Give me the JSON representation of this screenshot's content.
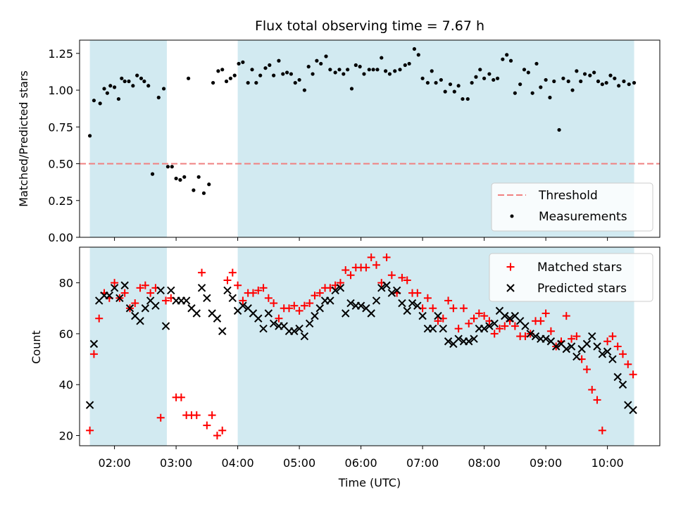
{
  "figure": {
    "title": "Flux total observing time = 7.67 h",
    "xlabel": "Time (UTC)",
    "xticks": [
      "02:00",
      "03:00",
      "04:00",
      "05:00",
      "06:00",
      "07:00",
      "08:00",
      "09:00",
      "10:00"
    ]
  },
  "colors": {
    "span": "#add8e6",
    "threshold": "#f08080",
    "measurements": "#000000",
    "matched": "#ff0000",
    "predicted": "#000000"
  },
  "chart_data": [
    {
      "type": "scatter",
      "ylabel": "Matched/Predicted stars",
      "xlim": [
        "01:26",
        "10:51"
      ],
      "ylim": [
        0,
        1.34
      ],
      "yticks": [
        "0.00",
        "0.25",
        "0.50",
        "0.75",
        "1.00",
        "1.25"
      ],
      "legend": {
        "placement": "lower right",
        "entries": [
          "Threshold",
          "Measurements"
        ]
      },
      "shaded_spans": [
        [
          "01:36",
          "02:51"
        ],
        [
          "04:00",
          "10:26"
        ]
      ],
      "threshold": 0.5,
      "series": [
        {
          "name": "Measurements",
          "x": [
            "01:36",
            "01:40",
            "01:46",
            "01:50",
            "01:53",
            "01:56",
            "02:00",
            "02:04",
            "02:07",
            "02:10",
            "02:14",
            "02:18",
            "02:22",
            "02:26",
            "02:29",
            "02:33",
            "02:37",
            "02:43",
            "02:48",
            "02:52",
            "02:56",
            "03:00",
            "03:04",
            "03:08",
            "03:12",
            "03:17",
            "03:22",
            "03:27",
            "03:32",
            "03:36",
            "03:41",
            "03:45",
            "03:49",
            "03:53",
            "03:57",
            "04:01",
            "04:05",
            "04:10",
            "04:14",
            "04:18",
            "04:22",
            "04:27",
            "04:31",
            "04:35",
            "04:40",
            "04:44",
            "04:48",
            "04:52",
            "04:56",
            "05:00",
            "05:05",
            "05:09",
            "05:13",
            "05:17",
            "05:21",
            "05:26",
            "05:30",
            "05:35",
            "05:39",
            "05:43",
            "05:47",
            "05:51",
            "05:55",
            "05:59",
            "06:03",
            "06:08",
            "06:12",
            "06:16",
            "06:20",
            "06:24",
            "06:28",
            "06:33",
            "06:38",
            "06:43",
            "06:47",
            "06:52",
            "06:56",
            "07:00",
            "07:05",
            "07:09",
            "07:13",
            "07:18",
            "07:22",
            "07:27",
            "07:31",
            "07:35",
            "07:39",
            "07:44",
            "07:48",
            "07:52",
            "07:56",
            "08:00",
            "08:05",
            "08:09",
            "08:13",
            "08:18",
            "08:22",
            "08:26",
            "08:30",
            "08:35",
            "08:39",
            "08:43",
            "08:47",
            "08:51",
            "08:55",
            "09:00",
            "09:04",
            "09:08",
            "09:13",
            "09:17",
            "09:22",
            "09:26",
            "09:30",
            "09:34",
            "09:38",
            "09:43",
            "09:47",
            "09:51",
            "09:55",
            "09:59",
            "10:03",
            "10:07",
            "10:11",
            "10:16",
            "10:21",
            "10:26"
          ],
          "y": [
            0.69,
            0.93,
            0.91,
            1.01,
            0.98,
            1.03,
            1.02,
            0.94,
            1.08,
            1.06,
            1.06,
            1.03,
            1.1,
            1.08,
            1.06,
            1.03,
            0.43,
            0.95,
            1.01,
            0.48,
            0.48,
            0.4,
            0.39,
            0.41,
            1.08,
            0.32,
            0.41,
            0.3,
            0.36,
            1.05,
            1.13,
            1.14,
            1.06,
            1.08,
            1.1,
            1.18,
            1.19,
            1.05,
            1.14,
            1.05,
            1.1,
            1.15,
            1.17,
            1.1,
            1.2,
            1.11,
            1.12,
            1.11,
            1.05,
            1.07,
            1.0,
            1.16,
            1.11,
            1.2,
            1.18,
            1.23,
            1.14,
            1.12,
            1.14,
            1.11,
            1.14,
            1.01,
            1.17,
            1.16,
            1.11,
            1.14,
            1.14,
            1.14,
            1.22,
            1.13,
            1.11,
            1.13,
            1.14,
            1.17,
            1.18,
            1.28,
            1.24,
            1.08,
            1.05,
            1.13,
            1.05,
            1.07,
            0.99,
            1.04,
            0.99,
            1.03,
            0.94,
            0.94,
            1.05,
            1.09,
            1.14,
            1.08,
            1.11,
            1.07,
            1.08,
            1.21,
            1.24,
            1.2,
            0.98,
            1.04,
            1.14,
            1.12,
            0.98,
            1.18,
            1.02,
            1.07,
            0.95,
            1.06,
            0.73,
            1.08,
            1.06,
            1.0,
            1.13,
            1.06,
            1.11,
            1.1,
            1.12,
            1.06,
            1.04,
            1.05,
            1.1,
            1.08,
            1.03,
            1.06,
            1.04,
            1.05
          ]
        }
      ]
    },
    {
      "type": "scatter",
      "ylabel": "Count",
      "xlim": [
        "01:26",
        "10:51"
      ],
      "ylim": [
        16,
        94
      ],
      "yticks": [
        "20",
        "40",
        "60",
        "80"
      ],
      "legend": {
        "placement": "upper right",
        "entries": [
          "Matched stars",
          "Predicted stars"
        ]
      },
      "shaded_spans": [
        [
          "01:36",
          "02:51"
        ],
        [
          "04:00",
          "10:26"
        ]
      ],
      "series": [
        {
          "name": "Matched stars",
          "x": [
            "01:36",
            "01:40",
            "01:45",
            "01:50",
            "01:55",
            "02:00",
            "02:05",
            "02:10",
            "02:15",
            "02:20",
            "02:25",
            "02:30",
            "02:35",
            "02:40",
            "02:45",
            "02:50",
            "02:55",
            "03:00",
            "03:05",
            "03:10",
            "03:15",
            "03:20",
            "03:25",
            "03:30",
            "03:35",
            "03:40",
            "03:45",
            "03:50",
            "03:55",
            "04:00",
            "04:05",
            "04:10",
            "04:15",
            "04:20",
            "04:25",
            "04:30",
            "04:35",
            "04:40",
            "04:45",
            "04:50",
            "04:55",
            "05:00",
            "05:05",
            "05:10",
            "05:15",
            "05:20",
            "05:25",
            "05:30",
            "05:35",
            "05:40",
            "05:45",
            "05:50",
            "05:55",
            "06:00",
            "06:05",
            "06:10",
            "06:15",
            "06:20",
            "06:25",
            "06:30",
            "06:35",
            "06:40",
            "06:45",
            "06:50",
            "06:55",
            "07:00",
            "07:05",
            "07:10",
            "07:15",
            "07:20",
            "07:25",
            "07:30",
            "07:35",
            "07:40",
            "07:45",
            "07:50",
            "07:55",
            "08:00",
            "08:05",
            "08:10",
            "08:15",
            "08:20",
            "08:25",
            "08:30",
            "08:35",
            "08:40",
            "08:45",
            "08:50",
            "08:55",
            "09:00",
            "09:05",
            "09:10",
            "09:15",
            "09:20",
            "09:25",
            "09:30",
            "09:35",
            "09:40",
            "09:45",
            "09:50",
            "09:55",
            "10:00",
            "10:05",
            "10:10",
            "10:15",
            "10:20",
            "10:25"
          ],
          "y": [
            22,
            52,
            66,
            76,
            74,
            80,
            74,
            76,
            70,
            72,
            78,
            79,
            76,
            78,
            27,
            73,
            74,
            35,
            35,
            28,
            28,
            28,
            84,
            24,
            28,
            20,
            22,
            81,
            84,
            79,
            73,
            76,
            76,
            77,
            78,
            74,
            72,
            66,
            70,
            70,
            71,
            69,
            71,
            72,
            75,
            76,
            78,
            78,
            79,
            80,
            85,
            83,
            86,
            86,
            86,
            90,
            87,
            80,
            90,
            83,
            76,
            82,
            81,
            76,
            76,
            70,
            74,
            70,
            65,
            66,
            73,
            70,
            62,
            70,
            64,
            66,
            68,
            67,
            65,
            60,
            62,
            63,
            65,
            63,
            59,
            59,
            60,
            65,
            65,
            68,
            61,
            55,
            57,
            67,
            58,
            59,
            50,
            46,
            38,
            34,
            22,
            57,
            59,
            55,
            52,
            48,
            44
          ]
        },
        {
          "name": "Predicted stars",
          "x": [
            "01:36",
            "01:40",
            "01:45",
            "01:50",
            "01:55",
            "02:00",
            "02:05",
            "02:10",
            "02:15",
            "02:20",
            "02:25",
            "02:30",
            "02:35",
            "02:40",
            "02:45",
            "02:50",
            "02:55",
            "03:00",
            "03:05",
            "03:10",
            "03:15",
            "03:20",
            "03:25",
            "03:30",
            "03:35",
            "03:40",
            "03:45",
            "03:50",
            "03:55",
            "04:00",
            "04:05",
            "04:10",
            "04:15",
            "04:20",
            "04:25",
            "04:30",
            "04:35",
            "04:40",
            "04:45",
            "04:50",
            "04:55",
            "05:00",
            "05:05",
            "05:10",
            "05:15",
            "05:20",
            "05:25",
            "05:30",
            "05:35",
            "05:40",
            "05:45",
            "05:50",
            "05:55",
            "06:00",
            "06:05",
            "06:10",
            "06:15",
            "06:20",
            "06:25",
            "06:30",
            "06:35",
            "06:40",
            "06:45",
            "06:50",
            "06:55",
            "07:00",
            "07:05",
            "07:10",
            "07:15",
            "07:20",
            "07:25",
            "07:30",
            "07:35",
            "07:40",
            "07:45",
            "07:50",
            "07:55",
            "08:00",
            "08:05",
            "08:10",
            "08:15",
            "08:20",
            "08:25",
            "08:30",
            "08:35",
            "08:40",
            "08:45",
            "08:50",
            "08:55",
            "09:00",
            "09:05",
            "09:10",
            "09:15",
            "09:20",
            "09:25",
            "09:30",
            "09:35",
            "09:40",
            "09:45",
            "09:50",
            "09:55",
            "10:00",
            "10:05",
            "10:10",
            "10:15",
            "10:20",
            "10:25"
          ],
          "y": [
            32,
            56,
            73,
            75,
            75,
            78,
            74,
            79,
            70,
            67,
            65,
            70,
            73,
            71,
            77,
            63,
            77,
            73,
            73,
            73,
            70,
            68,
            78,
            74,
            68,
            66,
            61,
            77,
            74,
            69,
            71,
            70,
            68,
            66,
            62,
            68,
            64,
            63,
            63,
            61,
            61,
            62,
            59,
            64,
            67,
            70,
            73,
            73,
            77,
            78,
            68,
            72,
            71,
            71,
            70,
            68,
            73,
            78,
            79,
            76,
            77,
            72,
            69,
            72,
            71,
            67,
            62,
            62,
            67,
            62,
            57,
            56,
            58,
            57,
            57,
            58,
            62,
            62,
            63,
            64,
            69,
            67,
            66,
            67,
            65,
            63,
            60,
            59,
            58,
            58,
            57,
            55,
            56,
            54,
            55,
            51,
            54,
            56,
            59,
            55,
            52,
            53,
            50,
            43,
            40,
            32,
            30
          ]
        }
      ]
    }
  ]
}
